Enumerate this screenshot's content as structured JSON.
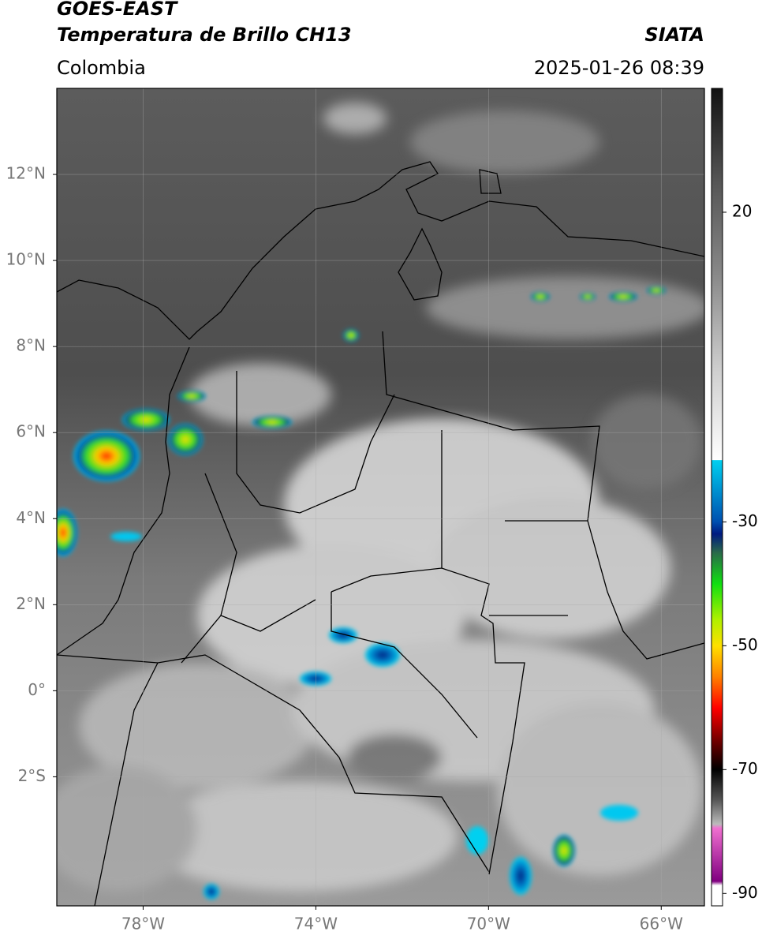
{
  "header": {
    "title": "GOES-EAST",
    "subtitle": "Temperatura de Brillo CH13",
    "source": "SIATA",
    "region": "Colombia",
    "datetime": "2025-01-26 08:39"
  },
  "map": {
    "lonlim": [
      -80,
      -65
    ],
    "latlim": [
      -5,
      14
    ],
    "lon_ticks": [
      {
        "value": -78,
        "label": "78°W"
      },
      {
        "value": -74,
        "label": "74°W"
      },
      {
        "value": -70,
        "label": "70°W"
      },
      {
        "value": -66,
        "label": "66°W"
      }
    ],
    "lat_ticks": [
      {
        "value": 12,
        "label": "12°N"
      },
      {
        "value": 10,
        "label": "10°N"
      },
      {
        "value": 8,
        "label": "8°N"
      },
      {
        "value": 6,
        "label": "6°N"
      },
      {
        "value": 4,
        "label": "4°N"
      },
      {
        "value": 2,
        "label": "2°N"
      },
      {
        "value": 0,
        "label": "0°"
      },
      {
        "value": -2,
        "label": "2°S"
      }
    ],
    "grid": true
  },
  "colorbar": {
    "clim": [
      -92,
      40
    ],
    "ticks": [
      20,
      -30,
      -50,
      -70,
      -90
    ]
  }
}
